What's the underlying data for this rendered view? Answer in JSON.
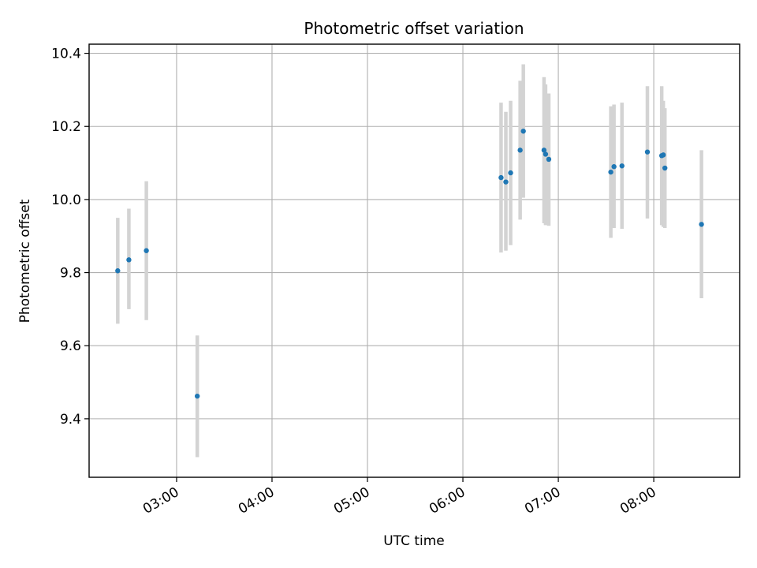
{
  "chart_data": {
    "type": "scatter",
    "title": "Photometric offset variation",
    "xlabel": "UTC time",
    "ylabel": "Photometric offset",
    "grid": true,
    "x_ticks": [
      "03:00",
      "04:00",
      "05:00",
      "06:00",
      "07:00",
      "08:00"
    ],
    "y_ticks": [
      "9.4",
      "9.6",
      "9.8",
      "10.0",
      "10.2",
      "10.4"
    ],
    "xlim": [
      "02:05",
      "08:54"
    ],
    "ylim": [
      9.24,
      10.425
    ],
    "marker_color": "#1f77b4",
    "errorbar_color": "#d3d3d3",
    "series": [
      {
        "points": [
          {
            "x": "02:23",
            "y": 9.805,
            "ylo": 9.66,
            "yhi": 9.95
          },
          {
            "x": "02:30",
            "y": 9.835,
            "ylo": 9.7,
            "yhi": 9.975
          },
          {
            "x": "02:41",
            "y": 9.86,
            "ylo": 9.67,
            "yhi": 10.05
          },
          {
            "x": "03:13",
            "y": 9.462,
            "ylo": 9.295,
            "yhi": 9.628
          },
          {
            "x": "06:24",
            "y": 10.06,
            "ylo": 9.855,
            "yhi": 10.265
          },
          {
            "x": "06:27",
            "y": 10.048,
            "ylo": 9.86,
            "yhi": 10.24
          },
          {
            "x": "06:30",
            "y": 10.073,
            "ylo": 9.875,
            "yhi": 10.27
          },
          {
            "x": "06:36",
            "y": 10.135,
            "ylo": 9.945,
            "yhi": 10.325
          },
          {
            "x": "06:38",
            "y": 10.187,
            "ylo": 10.005,
            "yhi": 10.37
          },
          {
            "x": "06:51",
            "y": 10.135,
            "ylo": 9.935,
            "yhi": 10.335
          },
          {
            "x": "06:52",
            "y": 10.124,
            "ylo": 9.93,
            "yhi": 10.315
          },
          {
            "x": "06:54",
            "y": 10.11,
            "ylo": 9.928,
            "yhi": 10.29
          },
          {
            "x": "07:33",
            "y": 10.075,
            "ylo": 9.895,
            "yhi": 10.255
          },
          {
            "x": "07:35",
            "y": 10.09,
            "ylo": 9.922,
            "yhi": 10.26
          },
          {
            "x": "07:40",
            "y": 10.092,
            "ylo": 9.92,
            "yhi": 10.265
          },
          {
            "x": "07:56",
            "y": 10.13,
            "ylo": 9.948,
            "yhi": 10.31
          },
          {
            "x": "08:05",
            "y": 10.12,
            "ylo": 9.93,
            "yhi": 10.31
          },
          {
            "x": "08:06",
            "y": 10.122,
            "ylo": 9.925,
            "yhi": 10.27
          },
          {
            "x": "08:07",
            "y": 10.086,
            "ylo": 9.922,
            "yhi": 10.25
          },
          {
            "x": "08:30",
            "y": 9.932,
            "ylo": 9.73,
            "yhi": 10.135
          }
        ]
      }
    ]
  }
}
